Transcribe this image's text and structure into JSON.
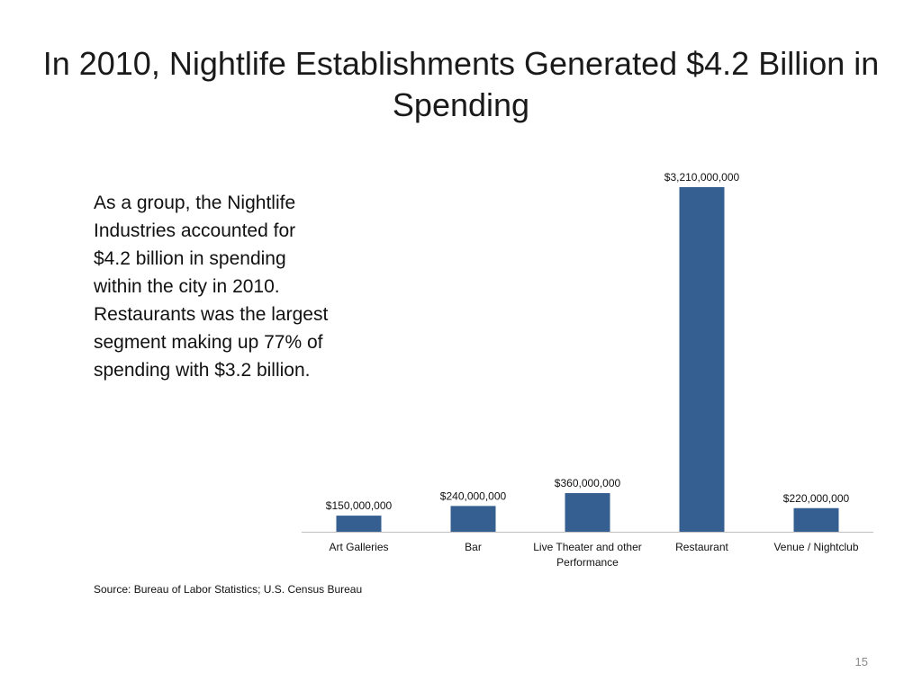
{
  "slide": {
    "title": "In 2010, Nightlife Establishments Generated $4.2 Billion in Spending",
    "body": "As a group, the Nightlife Industries accounted for $4.2 billion in spending within the city in 2010. Restaurants was the largest segment making up 77% of spending with $3.2 billion.",
    "source": "Source: Bureau of Labor Statistics; U.S. Census Bureau",
    "page_number": "15"
  },
  "colors": {
    "bar": "#365F91",
    "axis": "#BFBFBF"
  },
  "chart_data": {
    "type": "bar",
    "title": "",
    "xlabel": "",
    "ylabel": "",
    "categories": [
      "Art Galleries",
      "Bar",
      "Live Theater and other Performance",
      "Restaurant",
      "Venue / Nightclub"
    ],
    "values": [
      150000000,
      240000000,
      360000000,
      3210000000,
      220000000
    ],
    "data_labels": [
      "$150,000,000",
      "$240,000,000",
      "$360,000,000",
      "$3,210,000,000",
      "$220,000,000"
    ],
    "ylim": [
      0,
      3210000000
    ],
    "grid": false,
    "legend": "none"
  }
}
